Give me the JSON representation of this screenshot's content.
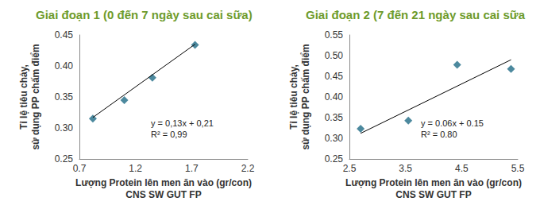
{
  "chart_data": [
    {
      "type": "scatter",
      "title": "Giai đoạn 1 (0 đến 7 ngày sau cai sữa)",
      "x_label": "Lượng Protein lên men ăn vào (gr/con)\nCNS SW GUT FP",
      "y_label": "Tỉ lệ tiêu chảy,\nsử dụng PP chấm điểm",
      "x": [
        0.82,
        1.1,
        1.35,
        1.73
      ],
      "values": [
        0.315,
        0.345,
        0.381,
        0.434
      ],
      "color": "#1f6b86",
      "marker": "diamond",
      "trend_line": {
        "x": [
          0.82,
          1.73
        ],
        "values": [
          0.317,
          0.435
        ],
        "color": "#000000"
      },
      "annotation": [
        "y = 0,13x + 0,21",
        "R² = 0,99"
      ],
      "xlim": [
        0.7,
        2.2
      ],
      "xticks": [
        0.7,
        1.2,
        1.7,
        2.2
      ],
      "ylim": [
        0.25,
        0.45
      ],
      "yticks": [
        0.25,
        {
          "value": 0.3,
          "label": "0.30"
        },
        0.35,
        {
          "value": 0.4,
          "label": "0.40"
        },
        0.45
      ],
      "grid": false
    },
    {
      "type": "scatter",
      "title": "Giai đoạn 2 (7 đến 21 ngày sau cai sữa",
      "x_label": "Lượng Protein lên men ăn vào (gr/con)\nCNS SW GUT FP",
      "y_label": "Tỉ lệ tiêu chảy,\nsử dụng PP chấm điểm",
      "x": [
        2.7,
        3.55,
        4.42,
        5.38
      ],
      "values": [
        0.323,
        0.343,
        0.478,
        0.468
      ],
      "color": "#1f6b86",
      "marker": "diamond",
      "trend_line": {
        "x": [
          2.7,
          5.38
        ],
        "values": [
          0.312,
          0.49
        ],
        "color": "#000000"
      },
      "annotation": [
        "y = 0.06x + 0.15",
        "R² = 0.80"
      ],
      "xlim": [
        2.5,
        5.5
      ],
      "xticks": [
        2.5,
        3.5,
        4.5,
        5.5
      ],
      "ylim": [
        0.25,
        0.55
      ],
      "yticks": [
        0.25,
        {
          "value": 0.3,
          "label": "0.30"
        },
        0.35,
        {
          "value": 0.4,
          "label": "0.40"
        },
        0.45,
        {
          "value": 0.5,
          "label": "0.50"
        },
        0.55
      ],
      "grid": false
    }
  ]
}
